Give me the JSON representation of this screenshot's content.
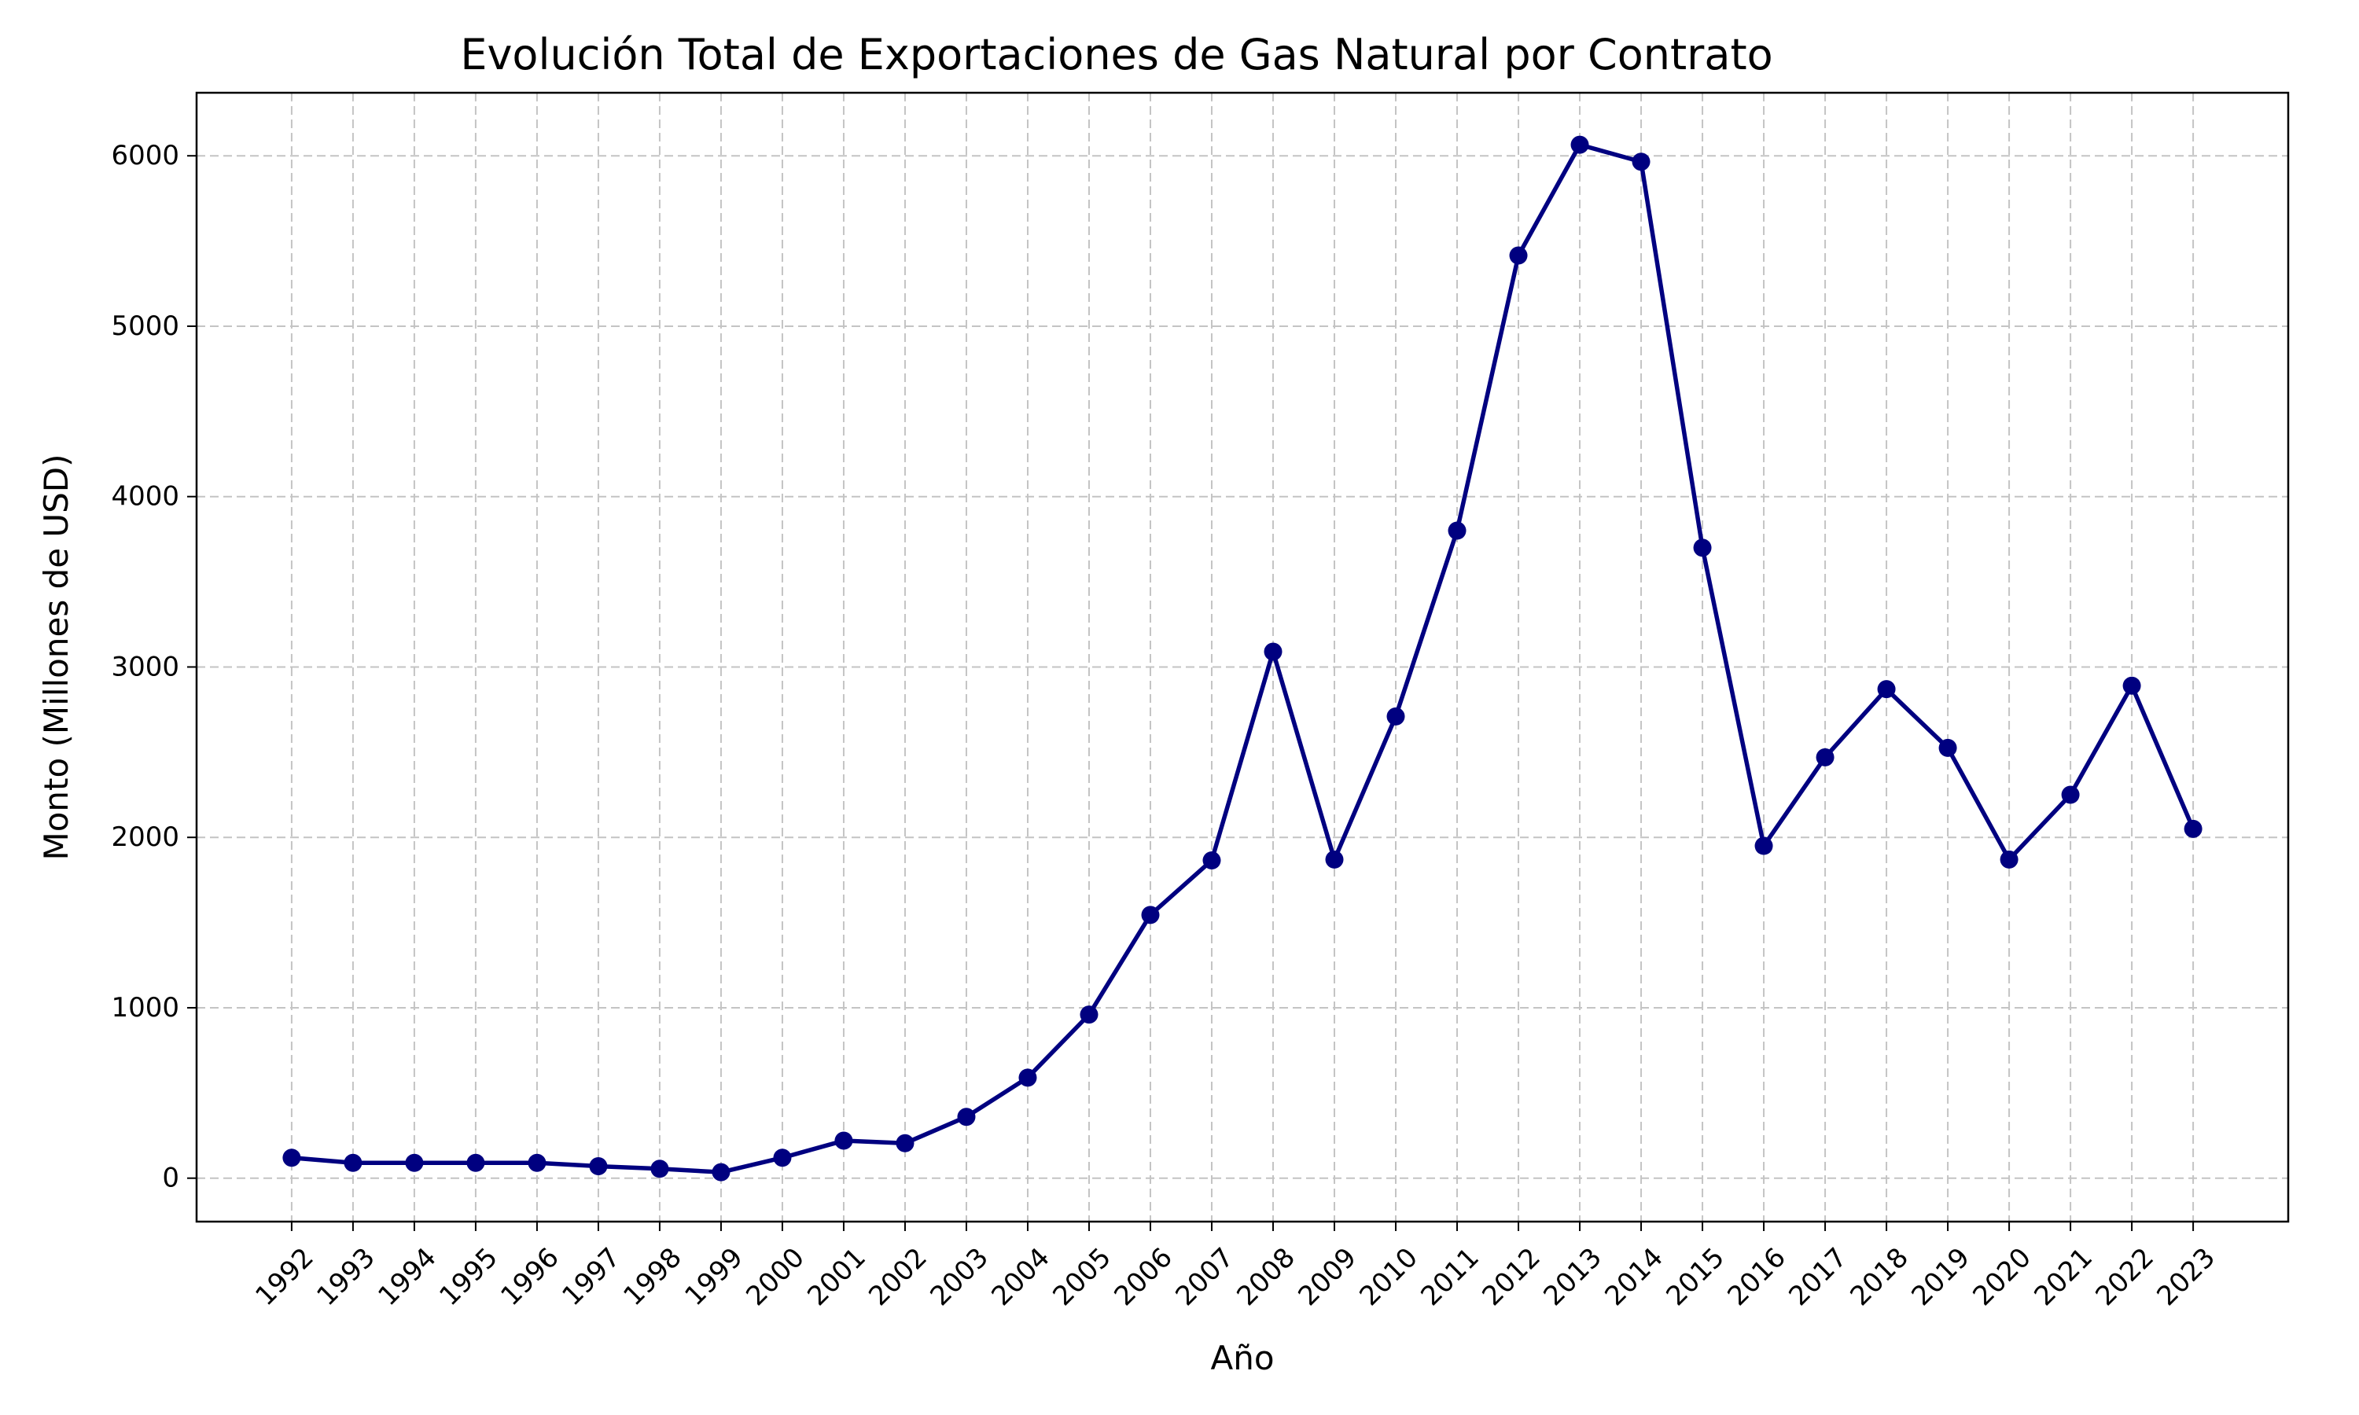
{
  "chart_data": {
    "type": "line",
    "title": "Evolución Total de Exportaciones de Gas Natural por Contrato",
    "xlabel": "Año",
    "ylabel": "Monto (Millones de USD)",
    "x": [
      1992,
      1993,
      1994,
      1995,
      1996,
      1997,
      1998,
      1999,
      2000,
      2001,
      2002,
      2003,
      2004,
      2005,
      2006,
      2007,
      2008,
      2009,
      2010,
      2011,
      2012,
      2013,
      2014,
      2015,
      2016,
      2017,
      2018,
      2019,
      2020,
      2021,
      2022,
      2023
    ],
    "series": [
      {
        "values": [
          120,
          90,
          90,
          90,
          90,
          70,
          55,
          35,
          120,
          220,
          205,
          360,
          590,
          960,
          1545,
          1865,
          3090,
          1870,
          2710,
          3800,
          5415,
          6065,
          5965,
          3700,
          1950,
          2470,
          2870,
          2525,
          1870,
          2250,
          2890,
          2050
        ],
        "color": "#000080"
      }
    ],
    "xlim": [
      1990.45,
      2024.55
    ],
    "ylim": [
      -255,
      6370
    ],
    "yticks": [
      0,
      1000,
      2000,
      3000,
      4000,
      5000,
      6000
    ],
    "grid": true,
    "line_color": "#000080",
    "marker": "circle"
  }
}
